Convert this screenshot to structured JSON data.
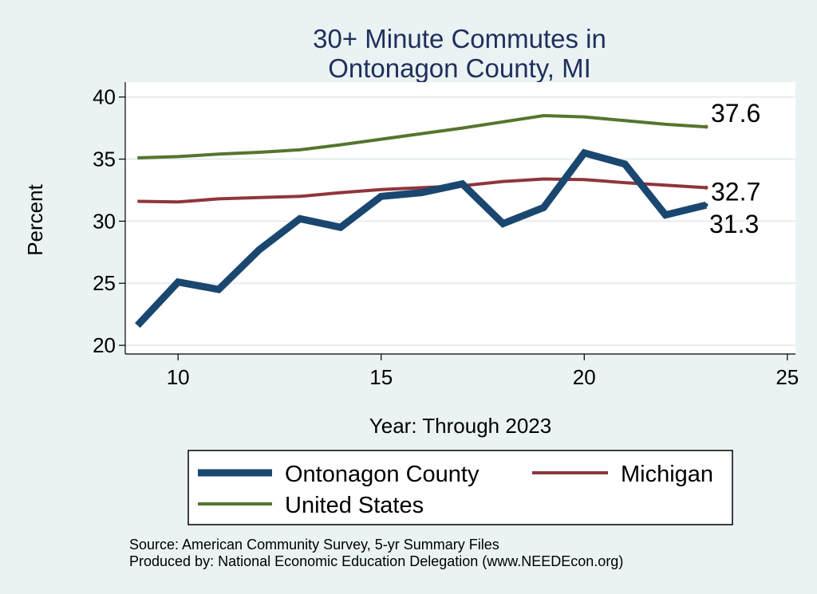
{
  "chart_data": {
    "type": "line",
    "title_lines": [
      "30+ Minute Commutes in",
      "Ontonagon County, MI"
    ],
    "xlabel": "Year: Through 2023",
    "ylabel": "Percent",
    "xlim": [
      8.7,
      25.2
    ],
    "ylim": [
      19.3,
      41.2
    ],
    "xticks": [
      10,
      15,
      20,
      25
    ],
    "yticks": [
      20,
      25,
      30,
      35,
      40
    ],
    "grid": true,
    "legend_position": "bottom",
    "series": [
      {
        "name": "Ontonagon County",
        "color": "#1a476f",
        "weight": "thick",
        "x": [
          9,
          10,
          11,
          12,
          13,
          14,
          15,
          16,
          17,
          18,
          19,
          20,
          21,
          22,
          23
        ],
        "values": [
          21.6,
          25.1,
          24.5,
          27.7,
          30.2,
          29.5,
          32.0,
          32.3,
          33.0,
          29.8,
          31.1,
          35.5,
          34.6,
          30.5,
          31.3
        ],
        "end_label": "31.3"
      },
      {
        "name": "Michigan",
        "color": "#90353b",
        "weight": "medium",
        "x": [
          9,
          10,
          11,
          12,
          13,
          14,
          15,
          16,
          17,
          18,
          19,
          20,
          21,
          22,
          23
        ],
        "values": [
          31.6,
          31.55,
          31.8,
          31.9,
          32.0,
          32.3,
          32.55,
          32.7,
          32.85,
          33.2,
          33.4,
          33.35,
          33.1,
          32.9,
          32.7
        ],
        "end_label": "32.7"
      },
      {
        "name": "United States",
        "color": "#55752f",
        "weight": "medium",
        "x": [
          9,
          10,
          11,
          12,
          13,
          14,
          15,
          16,
          17,
          18,
          19,
          20,
          21,
          22,
          23
        ],
        "values": [
          35.1,
          35.2,
          35.4,
          35.55,
          35.75,
          36.15,
          36.6,
          37.05,
          37.5,
          38.0,
          38.5,
          38.4,
          38.1,
          37.8,
          37.6
        ],
        "end_label": "37.6"
      }
    ],
    "legend": [
      {
        "name": "Ontonagon County",
        "color": "#1a476f"
      },
      {
        "name": "Michigan",
        "color": "#90353b"
      },
      {
        "name": "United States",
        "color": "#55752f"
      }
    ],
    "source_lines": [
      "Source: American Community Survey, 5-yr Summary Files",
      "Produced by: National Economic Education Delegation (www.NEEDEcon.org)"
    ]
  }
}
